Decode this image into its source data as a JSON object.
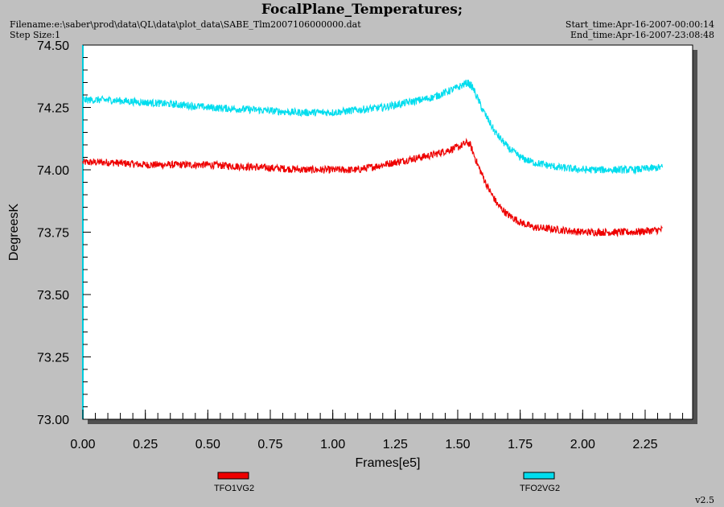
{
  "header": {
    "title": "FocalPlane_Temperatures;",
    "filename": "Filename:e:\\saber\\prod\\data\\QL\\data\\plot_data\\SABE_Tlm2007106000000.dat",
    "step_size": "Step Size:1",
    "start_time": "Start_time:Apr-16-2007-00:00:14",
    "end_time": "End_time:Apr-16-2007-23:08:48"
  },
  "version": "v2.5",
  "colors": {
    "series1": "#ee0000",
    "series2": "#00ddee",
    "background": "#c0c0c0",
    "plot": "#ffffff"
  },
  "chart_data": {
    "type": "line",
    "xlabel": "Frames[e5]",
    "ylabel": "DegreesK",
    "xlim": [
      0.0,
      2.44
    ],
    "ylim": [
      73.0,
      74.5
    ],
    "xticks": [
      "0.00",
      "0.25",
      "0.50",
      "0.75",
      "1.00",
      "1.25",
      "1.50",
      "1.75",
      "2.00",
      "2.25"
    ],
    "yticks": [
      "73.00",
      "73.25",
      "73.50",
      "73.75",
      "74.00",
      "74.25",
      "74.50"
    ],
    "grid": false,
    "legend_position": "bottom",
    "series": [
      {
        "name": "TFO1VG2",
        "color": "#ee0000",
        "noise": 0.03,
        "x": [
          0.0,
          0.1,
          0.25,
          0.4,
          0.5,
          0.7,
          0.9,
          1.0,
          1.1,
          1.2,
          1.3,
          1.4,
          1.5,
          1.54,
          1.55,
          1.58,
          1.62,
          1.66,
          1.7,
          1.75,
          1.8,
          1.9,
          2.0,
          2.1,
          2.2,
          2.32
        ],
        "y": [
          74.03,
          74.03,
          74.02,
          74.02,
          74.02,
          74.01,
          74.0,
          74.0,
          74.0,
          74.02,
          74.04,
          74.06,
          74.09,
          74.11,
          74.1,
          74.02,
          73.93,
          73.86,
          73.82,
          73.79,
          73.77,
          73.76,
          73.75,
          73.75,
          73.75,
          73.76
        ]
      },
      {
        "name": "TFO2VG2",
        "color": "#00ddee",
        "noise": 0.03,
        "x": [
          0.0,
          0.1,
          0.25,
          0.4,
          0.5,
          0.7,
          0.85,
          1.0,
          1.1,
          1.2,
          1.3,
          1.4,
          1.5,
          1.54,
          1.56,
          1.6,
          1.65,
          1.7,
          1.75,
          1.8,
          1.9,
          2.0,
          2.1,
          2.2,
          2.32
        ],
        "y": [
          74.28,
          74.28,
          74.27,
          74.26,
          74.25,
          74.24,
          74.23,
          74.23,
          74.24,
          74.25,
          74.27,
          74.29,
          74.33,
          74.35,
          74.33,
          74.24,
          74.15,
          74.09,
          74.05,
          74.03,
          74.01,
          74.0,
          74.0,
          74.0,
          74.01
        ]
      }
    ]
  }
}
